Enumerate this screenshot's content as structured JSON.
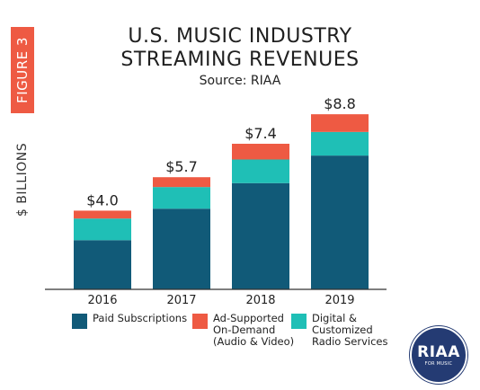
{
  "figure_label": "FIGURE 3",
  "colors": {
    "accent": "#EE5A43",
    "paid": "#115A78",
    "ad": "#EE5A43",
    "digital": "#1FBFB6",
    "axis": "#333333",
    "logo": "#243B73"
  },
  "chart_data": {
    "type": "bar",
    "stacked": true,
    "title": "U.S. MUSIC INDUSTRY",
    "title_line2": "STREAMING REVENUES",
    "subtitle": "Source: RIAA",
    "ylabel": "$ BILLIONS",
    "xlabel": "",
    "categories": [
      "2016",
      "2017",
      "2018",
      "2019"
    ],
    "ylim": [
      0,
      9.5
    ],
    "grid": false,
    "legend_position": "bottom",
    "series": [
      {
        "name": "Paid Subscriptions",
        "values": [
          2.5,
          4.1,
          5.4,
          6.8
        ],
        "color": "#115A78"
      },
      {
        "name": "Digital & Customized Radio Services",
        "values": [
          1.1,
          1.1,
          1.2,
          1.2
        ],
        "color": "#1FBFB6"
      },
      {
        "name": "Ad-Supported On-Demand (Audio & Video)",
        "values": [
          0.4,
          0.5,
          0.8,
          0.9
        ],
        "color": "#EE5A43"
      }
    ],
    "totals": [
      4.0,
      5.7,
      7.4,
      8.8
    ],
    "total_labels": [
      "$4.0",
      "$5.7",
      "$7.4",
      "$8.8"
    ]
  },
  "legend": [
    {
      "lines": [
        "Paid Subscriptions"
      ],
      "color": "#115A78"
    },
    {
      "lines": [
        "Ad-Supported",
        "On-Demand",
        "(Audio & Video)"
      ],
      "color": "#EE5A43"
    },
    {
      "lines": [
        "Digital &",
        "Customized",
        "Radio Services"
      ],
      "color": "#1FBFB6"
    }
  ],
  "logo": {
    "text": "RIAA",
    "small": "FOR MUSIC"
  }
}
